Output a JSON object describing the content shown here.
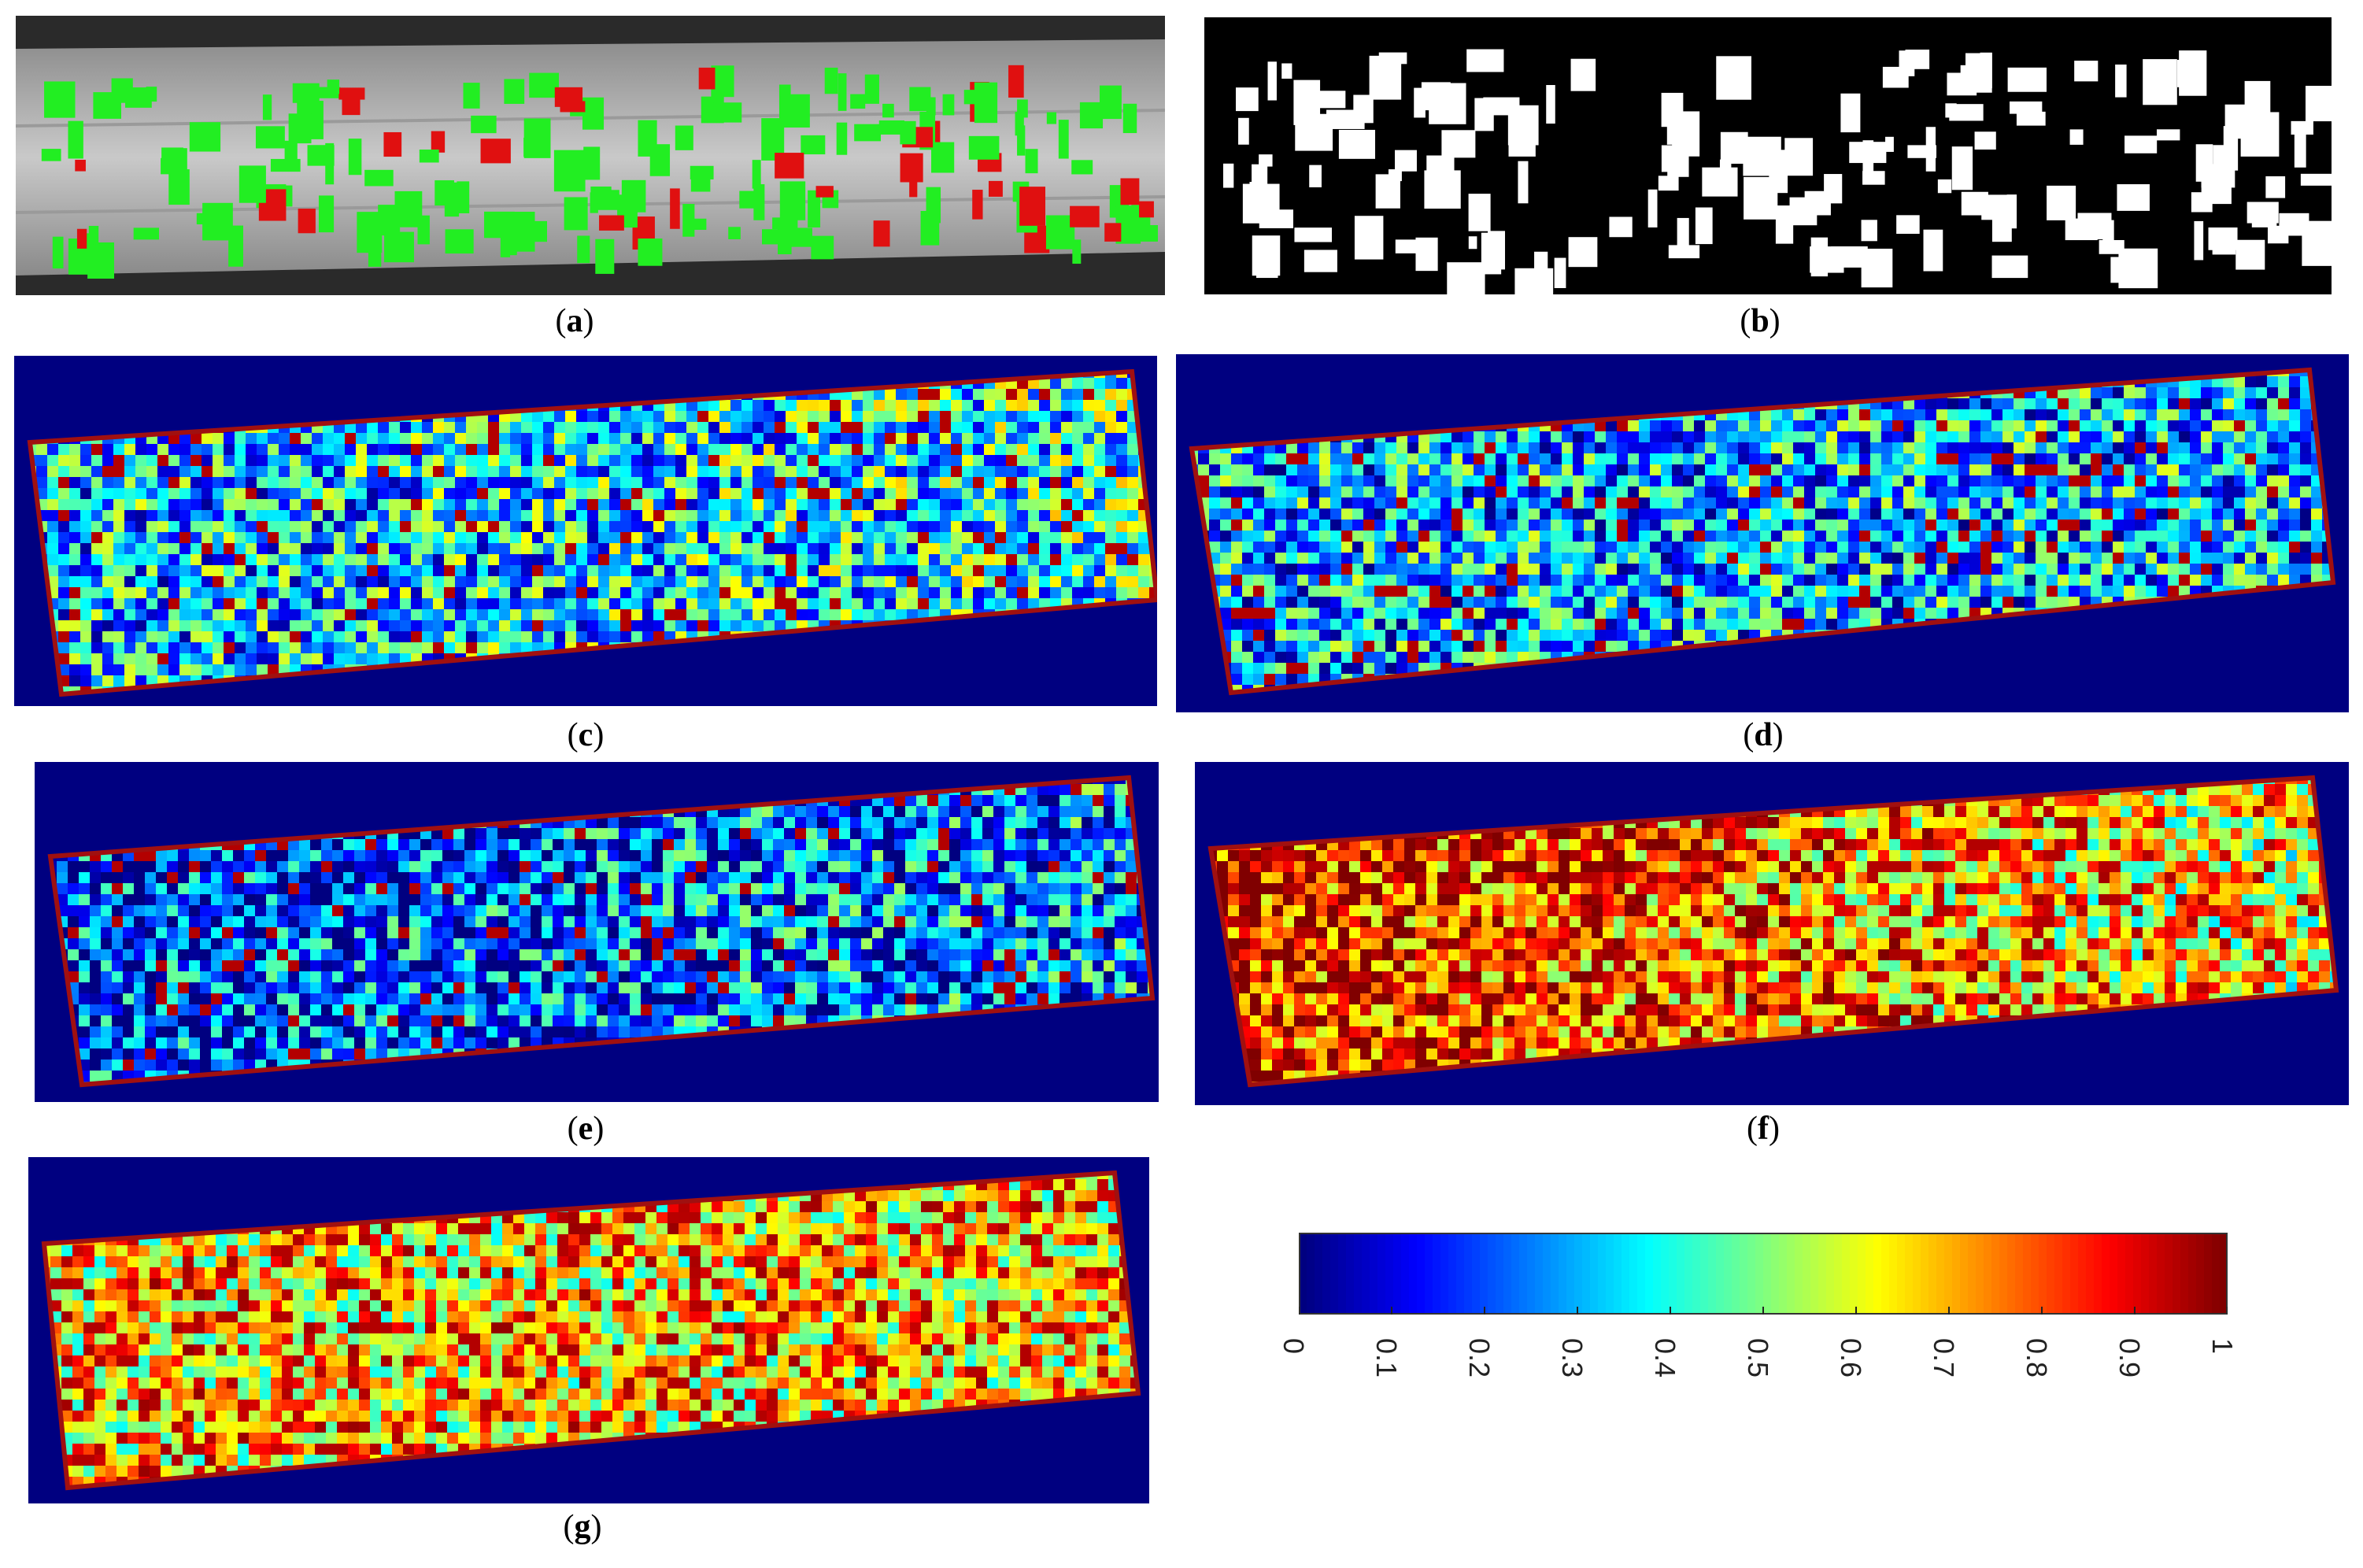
{
  "figure": {
    "panels": [
      {
        "id": "a",
        "kind": "photo-overlay",
        "caption_letter": "a"
      },
      {
        "id": "b",
        "kind": "binary-mask",
        "caption_letter": "b"
      },
      {
        "id": "c",
        "kind": "heatmap",
        "caption_letter": "c"
      },
      {
        "id": "d",
        "kind": "heatmap",
        "caption_letter": "d"
      },
      {
        "id": "e",
        "kind": "heatmap",
        "caption_letter": "e"
      },
      {
        "id": "f",
        "kind": "heatmap",
        "caption_letter": "f"
      },
      {
        "id": "g",
        "kind": "heatmap",
        "caption_letter": "g"
      }
    ],
    "colors": {
      "background_map": "#000080",
      "overlay_green": "#22ee22",
      "overlay_red": "#e01010"
    }
  },
  "chart_data": {
    "type": "heatmap",
    "colormap": "jet",
    "colorbar": {
      "vmin": 0,
      "vmax": 1,
      "tick_labels": [
        "0",
        "0.1",
        "0.2",
        "0.3",
        "0.4",
        "0.5",
        "0.6",
        "0.7",
        "0.8",
        "0.9",
        "1"
      ],
      "tick_values": [
        0,
        0.1,
        0.2,
        0.3,
        0.4,
        0.5,
        0.6,
        0.7,
        0.8,
        0.9,
        1
      ]
    },
    "panel_mean_levels": {
      "c": 0.35,
      "d": 0.3,
      "e": 0.22,
      "f": 0.75,
      "g": 0.68
    }
  }
}
